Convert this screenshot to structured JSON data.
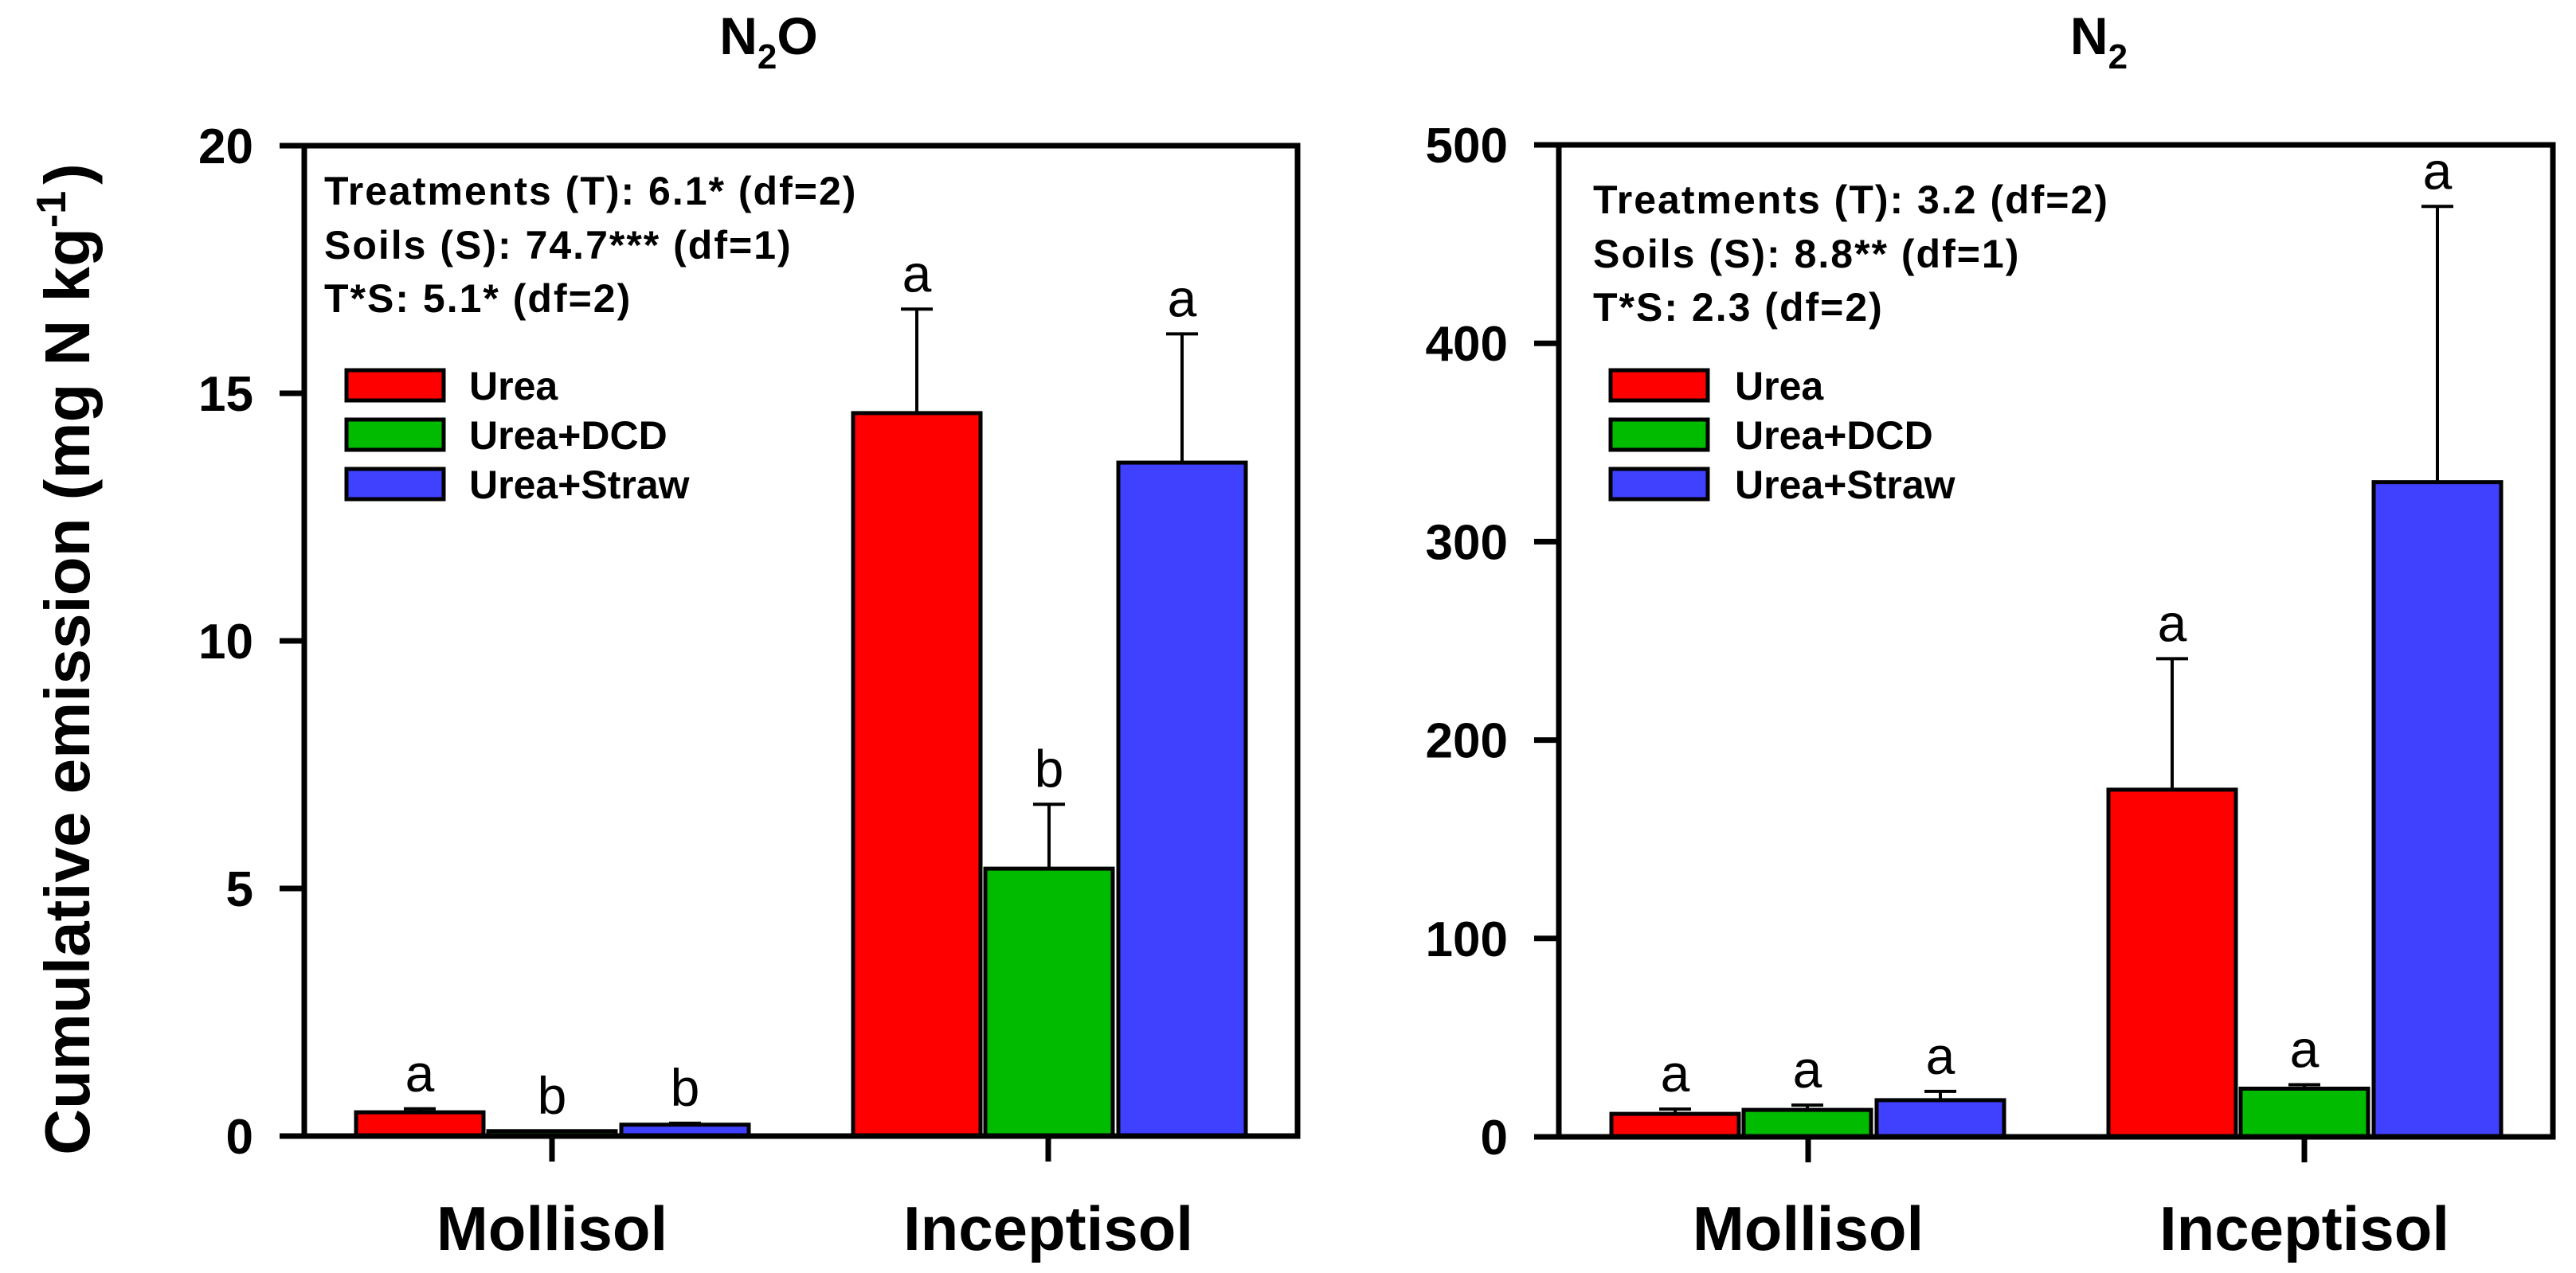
{
  "figure": {
    "ylabel_main": "Cumulative emission (mg N kg",
    "ylabel_sup": "-1",
    "ylabel_close": ")"
  },
  "colors": {
    "Urea": "#FF0000",
    "Urea+DCD": "#00BB00",
    "Urea+Straw": "#4040FF",
    "axis": "#000000"
  },
  "chart_data": [
    {
      "type": "bar",
      "title": "N2O",
      "title_main": "N",
      "title_sub": "2",
      "title_tail": "O",
      "xlabel": "",
      "ylabel": "Cumulative emission (mg N kg-1)",
      "ylim": [
        0,
        20
      ],
      "yticks": [
        0,
        5,
        10,
        15,
        20
      ],
      "ytick_labels": [
        "0",
        "5",
        "10",
        "15",
        "20"
      ],
      "categories": [
        "Mollisol",
        "Inceptisol"
      ],
      "legend_position": "upper-left",
      "grid": false,
      "stats": [
        "Treatments (T): 6.1* (df=2)",
        "Soils (S): 74.7*** (df=1)",
        "T*S: 5.1* (df=2)"
      ],
      "series": [
        {
          "name": "Urea",
          "values": [
            0.48,
            14.6
          ],
          "errors": [
            0.07,
            2.1
          ],
          "letters": [
            "a",
            "a"
          ]
        },
        {
          "name": "Urea+DCD",
          "values": [
            0.1,
            5.4
          ],
          "errors": [
            0.0,
            1.3
          ],
          "letters": [
            "b",
            "b"
          ]
        },
        {
          "name": "Urea+Straw",
          "values": [
            0.23,
            13.6
          ],
          "errors": [
            0.03,
            2.6
          ],
          "letters": [
            "b",
            "a"
          ]
        }
      ]
    },
    {
      "type": "bar",
      "title": "N2",
      "title_main": "N",
      "title_sub": "2",
      "title_tail": "",
      "xlabel": "",
      "ylabel": "",
      "ylim": [
        0,
        500
      ],
      "yticks": [
        0,
        100,
        200,
        300,
        400,
        500
      ],
      "ytick_labels": [
        "0",
        "100",
        "200",
        "300",
        "400",
        "500"
      ],
      "categories": [
        "Mollisol",
        "Inceptisol"
      ],
      "legend_position": "upper-left",
      "grid": false,
      "stats": [
        "Treatments (T): 3.2 (df=2)",
        "Soils (S): 8.8** (df=1)",
        "T*S: 2.3 (df=2)"
      ],
      "series": [
        {
          "name": "Urea",
          "values": [
            11.6,
            175
          ],
          "errors": [
            2.4,
            66
          ],
          "letters": [
            "a",
            "a"
          ]
        },
        {
          "name": "Urea+DCD",
          "values": [
            13.6,
            24.3
          ],
          "errors": [
            2.4,
            2.0
          ],
          "letters": [
            "a",
            "a"
          ]
        },
        {
          "name": "Urea+Straw",
          "values": [
            18.5,
            330
          ],
          "errors": [
            4.4,
            139
          ],
          "letters": [
            "a",
            "a"
          ]
        }
      ]
    }
  ]
}
